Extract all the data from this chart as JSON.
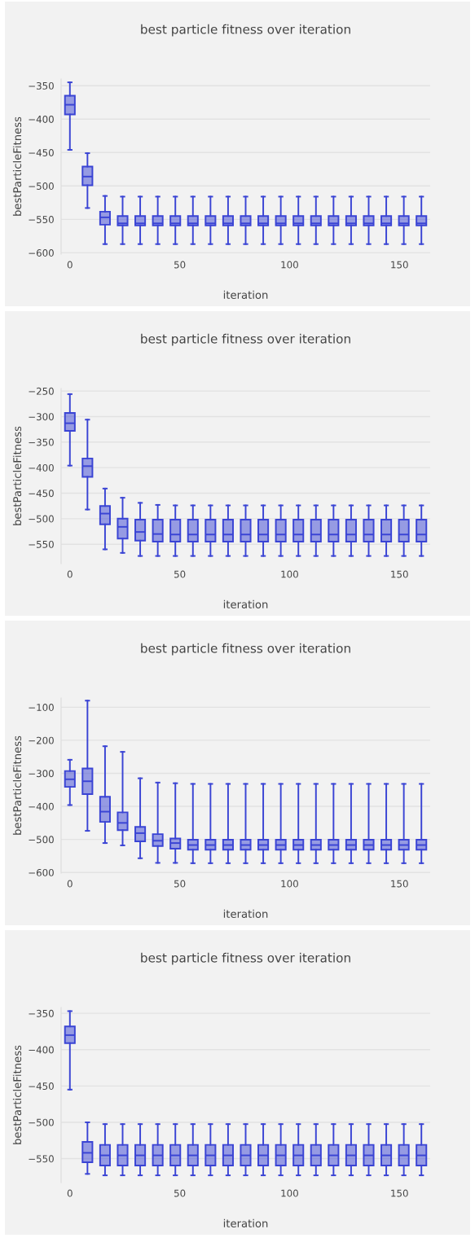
{
  "chart_data": [
    {
      "type": "box",
      "title": "best particle fitness over iteration",
      "xlabel": "iteration",
      "ylabel": "bestParticleFitness",
      "color": "#3a44d4",
      "grid": "y",
      "xlim": [
        -4,
        164
      ],
      "xticks": [
        0,
        50,
        100,
        150
      ],
      "ylim": [
        -602,
        -340
      ],
      "yticks": [
        -600,
        -550,
        -500,
        -450,
        -400,
        -350
      ],
      "x": [
        0,
        8,
        16,
        24,
        32,
        40,
        48,
        56,
        64,
        72,
        80,
        88,
        96,
        104,
        112,
        120,
        128,
        136,
        144,
        152,
        160
      ],
      "boxes": [
        {
          "low": -446,
          "q1": -393,
          "median": -378.5,
          "q3": -365,
          "high": -345
        },
        {
          "low": -533,
          "q1": -499,
          "median": -486,
          "q3": -471,
          "high": -451
        },
        {
          "low": -587,
          "q1": -558,
          "median": -547,
          "q3": -538.5,
          "high": -515
        },
        {
          "low": -587,
          "q1": -559,
          "median": -556,
          "q3": -545,
          "high": -516
        },
        {
          "low": -587,
          "q1": -559,
          "median": -556,
          "q3": -545,
          "high": -516
        },
        {
          "low": -587,
          "q1": -559,
          "median": -556,
          "q3": -545,
          "high": -516
        },
        {
          "low": -587,
          "q1": -559,
          "median": -556,
          "q3": -545,
          "high": -516
        },
        {
          "low": -587,
          "q1": -559,
          "median": -556,
          "q3": -545,
          "high": -516
        },
        {
          "low": -587,
          "q1": -559,
          "median": -556,
          "q3": -545,
          "high": -516
        },
        {
          "low": -587,
          "q1": -559,
          "median": -556,
          "q3": -545,
          "high": -516
        },
        {
          "low": -587,
          "q1": -559,
          "median": -556,
          "q3": -545,
          "high": -516
        },
        {
          "low": -587,
          "q1": -559,
          "median": -556,
          "q3": -545,
          "high": -516
        },
        {
          "low": -587,
          "q1": -559,
          "median": -556,
          "q3": -545,
          "high": -516
        },
        {
          "low": -587,
          "q1": -559,
          "median": -556,
          "q3": -545,
          "high": -516
        },
        {
          "low": -587,
          "q1": -559,
          "median": -556,
          "q3": -545,
          "high": -516
        },
        {
          "low": -587,
          "q1": -559,
          "median": -556,
          "q3": -545,
          "high": -516
        },
        {
          "low": -587,
          "q1": -559,
          "median": -556,
          "q3": -545,
          "high": -516
        },
        {
          "low": -587,
          "q1": -559,
          "median": -556,
          "q3": -545,
          "high": -516
        },
        {
          "low": -587,
          "q1": -559,
          "median": -556,
          "q3": -545,
          "high": -516
        },
        {
          "low": -587,
          "q1": -559,
          "median": -556,
          "q3": -545,
          "high": -516
        },
        {
          "low": -587,
          "q1": -559,
          "median": -556,
          "q3": -545,
          "high": -516
        }
      ]
    },
    {
      "type": "box",
      "title": "best particle fitness over iteration",
      "xlabel": "iteration",
      "ylabel": "bestParticleFitness",
      "color": "#3a44d4",
      "grid": "y",
      "xlim": [
        -4,
        164
      ],
      "xticks": [
        0,
        50,
        100,
        150
      ],
      "ylim": [
        -588,
        -245
      ],
      "yticks": [
        -550,
        -500,
        -450,
        -400,
        -350,
        -300,
        -250
      ],
      "x": [
        0,
        8,
        16,
        24,
        32,
        40,
        48,
        56,
        64,
        72,
        80,
        88,
        96,
        104,
        112,
        120,
        128,
        136,
        144,
        152,
        160
      ],
      "boxes": [
        {
          "low": -396,
          "q1": -328,
          "median": -313,
          "q3": -293,
          "high": -256
        },
        {
          "low": -482,
          "q1": -418,
          "median": -397,
          "q3": -382,
          "high": -306
        },
        {
          "low": -560,
          "q1": -511,
          "median": -490,
          "q3": -475,
          "high": -441
        },
        {
          "low": -567,
          "q1": -539,
          "median": -516,
          "q3": -500,
          "high": -459
        },
        {
          "low": -573,
          "q1": -543,
          "median": -526,
          "q3": -502,
          "high": -469
        },
        {
          "low": -573,
          "q1": -545,
          "median": -530,
          "q3": -502,
          "high": -473
        },
        {
          "low": -573,
          "q1": -545,
          "median": -531,
          "q3": -502,
          "high": -474
        },
        {
          "low": -573,
          "q1": -545,
          "median": -531,
          "q3": -502,
          "high": -474
        },
        {
          "low": -573,
          "q1": -545,
          "median": -531,
          "q3": -502,
          "high": -474
        },
        {
          "low": -573,
          "q1": -545,
          "median": -531,
          "q3": -502,
          "high": -474
        },
        {
          "low": -573,
          "q1": -545,
          "median": -531,
          "q3": -502,
          "high": -474
        },
        {
          "low": -573,
          "q1": -545,
          "median": -531,
          "q3": -502,
          "high": -474
        },
        {
          "low": -573,
          "q1": -545,
          "median": -531,
          "q3": -502,
          "high": -474
        },
        {
          "low": -573,
          "q1": -545,
          "median": -531,
          "q3": -502,
          "high": -474
        },
        {
          "low": -573,
          "q1": -545,
          "median": -531,
          "q3": -502,
          "high": -474
        },
        {
          "low": -573,
          "q1": -545,
          "median": -531,
          "q3": -502,
          "high": -474
        },
        {
          "low": -573,
          "q1": -545,
          "median": -531,
          "q3": -502,
          "high": -474
        },
        {
          "low": -573,
          "q1": -545,
          "median": -531,
          "q3": -502,
          "high": -474
        },
        {
          "low": -573,
          "q1": -545,
          "median": -531,
          "q3": -502,
          "high": -474
        },
        {
          "low": -573,
          "q1": -545,
          "median": -531,
          "q3": -502,
          "high": -474
        },
        {
          "low": -573,
          "q1": -545,
          "median": -531,
          "q3": -502,
          "high": -474
        }
      ]
    },
    {
      "type": "box",
      "title": "best particle fitness over iteration",
      "xlabel": "iteration",
      "ylabel": "bestParticleFitness",
      "color": "#3a44d4",
      "grid": "y",
      "xlim": [
        -4,
        164
      ],
      "xticks": [
        0,
        50,
        100,
        150
      ],
      "ylim": [
        -602,
        -72
      ],
      "yticks": [
        -600,
        -500,
        -400,
        -300,
        -200,
        -100
      ],
      "x": [
        0,
        8,
        16,
        24,
        32,
        40,
        48,
        56,
        64,
        72,
        80,
        88,
        96,
        104,
        112,
        120,
        128,
        136,
        144,
        152,
        160
      ],
      "boxes": [
        {
          "low": -396,
          "q1": -341,
          "median": -318,
          "q3": -293,
          "high": -259
        },
        {
          "low": -474,
          "q1": -363,
          "median": -324,
          "q3": -285,
          "high": -80
        },
        {
          "low": -511,
          "q1": -447,
          "median": -416,
          "q3": -371,
          "high": -218
        },
        {
          "low": -518,
          "q1": -472,
          "median": -450,
          "q3": -418,
          "high": -235
        },
        {
          "low": -557,
          "q1": -506,
          "median": -481,
          "q3": -462,
          "high": -315
        },
        {
          "low": -571,
          "q1": -520,
          "median": -504,
          "q3": -484,
          "high": -328
        },
        {
          "low": -571,
          "q1": -528,
          "median": -511,
          "q3": -497,
          "high": -330
        },
        {
          "low": -572,
          "q1": -531,
          "median": -517,
          "q3": -501,
          "high": -332
        },
        {
          "low": -572,
          "q1": -531,
          "median": -517,
          "q3": -501,
          "high": -332
        },
        {
          "low": -572,
          "q1": -531,
          "median": -517,
          "q3": -501,
          "high": -332
        },
        {
          "low": -572,
          "q1": -531,
          "median": -517,
          "q3": -501,
          "high": -332
        },
        {
          "low": -572,
          "q1": -531,
          "median": -517,
          "q3": -501,
          "high": -332
        },
        {
          "low": -572,
          "q1": -531,
          "median": -517,
          "q3": -501,
          "high": -332
        },
        {
          "low": -572,
          "q1": -531,
          "median": -517,
          "q3": -501,
          "high": -332
        },
        {
          "low": -572,
          "q1": -531,
          "median": -517,
          "q3": -501,
          "high": -332
        },
        {
          "low": -572,
          "q1": -531,
          "median": -517,
          "q3": -501,
          "high": -332
        },
        {
          "low": -572,
          "q1": -531,
          "median": -517,
          "q3": -501,
          "high": -332
        },
        {
          "low": -572,
          "q1": -531,
          "median": -517,
          "q3": -501,
          "high": -332
        },
        {
          "low": -572,
          "q1": -531,
          "median": -517,
          "q3": -501,
          "high": -332
        },
        {
          "low": -572,
          "q1": -531,
          "median": -517,
          "q3": -501,
          "high": -332
        },
        {
          "low": -572,
          "q1": -531,
          "median": -517,
          "q3": -501,
          "high": -332
        }
      ]
    },
    {
      "type": "box",
      "title": "best particle fitness over iteration",
      "xlabel": "iteration",
      "ylabel": "bestParticleFitness",
      "color": "#3a44d4",
      "grid": "y",
      "xlim": [
        -4,
        164
      ],
      "xticks": [
        0,
        50,
        100,
        150
      ],
      "ylim": [
        -583,
        -342
      ],
      "yticks": [
        -550,
        -500,
        -450,
        -400,
        -350
      ],
      "x": [
        0,
        8,
        16,
        24,
        32,
        40,
        48,
        56,
        64,
        72,
        80,
        88,
        96,
        104,
        112,
        120,
        128,
        136,
        144,
        152,
        160
      ],
      "boxes": [
        {
          "low": -455,
          "q1": -391,
          "median": -380,
          "q3": -368,
          "high": -347
        },
        {
          "low": -571,
          "q1": -555,
          "median": -542,
          "q3": -527,
          "high": -500
        },
        {
          "low": -573,
          "q1": -559.5,
          "median": -545.5,
          "q3": -531,
          "high": -502.5
        },
        {
          "low": -573,
          "q1": -559.5,
          "median": -545.5,
          "q3": -531,
          "high": -502.5
        },
        {
          "low": -573,
          "q1": -559.5,
          "median": -545.5,
          "q3": -531,
          "high": -502.5
        },
        {
          "low": -573,
          "q1": -559.5,
          "median": -545.5,
          "q3": -531,
          "high": -502.5
        },
        {
          "low": -573,
          "q1": -559.5,
          "median": -545.5,
          "q3": -531,
          "high": -502.5
        },
        {
          "low": -573,
          "q1": -559.5,
          "median": -545.5,
          "q3": -531,
          "high": -502.5
        },
        {
          "low": -573,
          "q1": -559.5,
          "median": -545.5,
          "q3": -531,
          "high": -502.5
        },
        {
          "low": -573,
          "q1": -559.5,
          "median": -545.5,
          "q3": -531,
          "high": -502.5
        },
        {
          "low": -573,
          "q1": -559.5,
          "median": -545.5,
          "q3": -531,
          "high": -502.5
        },
        {
          "low": -573,
          "q1": -559.5,
          "median": -545.5,
          "q3": -531,
          "high": -502.5
        },
        {
          "low": -573,
          "q1": -559.5,
          "median": -545.5,
          "q3": -531,
          "high": -502.5
        },
        {
          "low": -573,
          "q1": -559.5,
          "median": -545.5,
          "q3": -531,
          "high": -502.5
        },
        {
          "low": -573,
          "q1": -559.5,
          "median": -545.5,
          "q3": -531,
          "high": -502.5
        },
        {
          "low": -573,
          "q1": -559.5,
          "median": -545.5,
          "q3": -531,
          "high": -502.5
        },
        {
          "low": -573,
          "q1": -559.5,
          "median": -545.5,
          "q3": -531,
          "high": -502.5
        },
        {
          "low": -573,
          "q1": -559.5,
          "median": -545.5,
          "q3": -531,
          "high": -502.5
        },
        {
          "low": -573,
          "q1": -559.5,
          "median": -545.5,
          "q3": -531,
          "high": -502.5
        },
        {
          "low": -573,
          "q1": -559.5,
          "median": -545.5,
          "q3": -531,
          "high": -502.5
        },
        {
          "low": -573,
          "q1": -559.5,
          "median": -545.5,
          "q3": -531,
          "high": -502.5
        }
      ]
    }
  ]
}
